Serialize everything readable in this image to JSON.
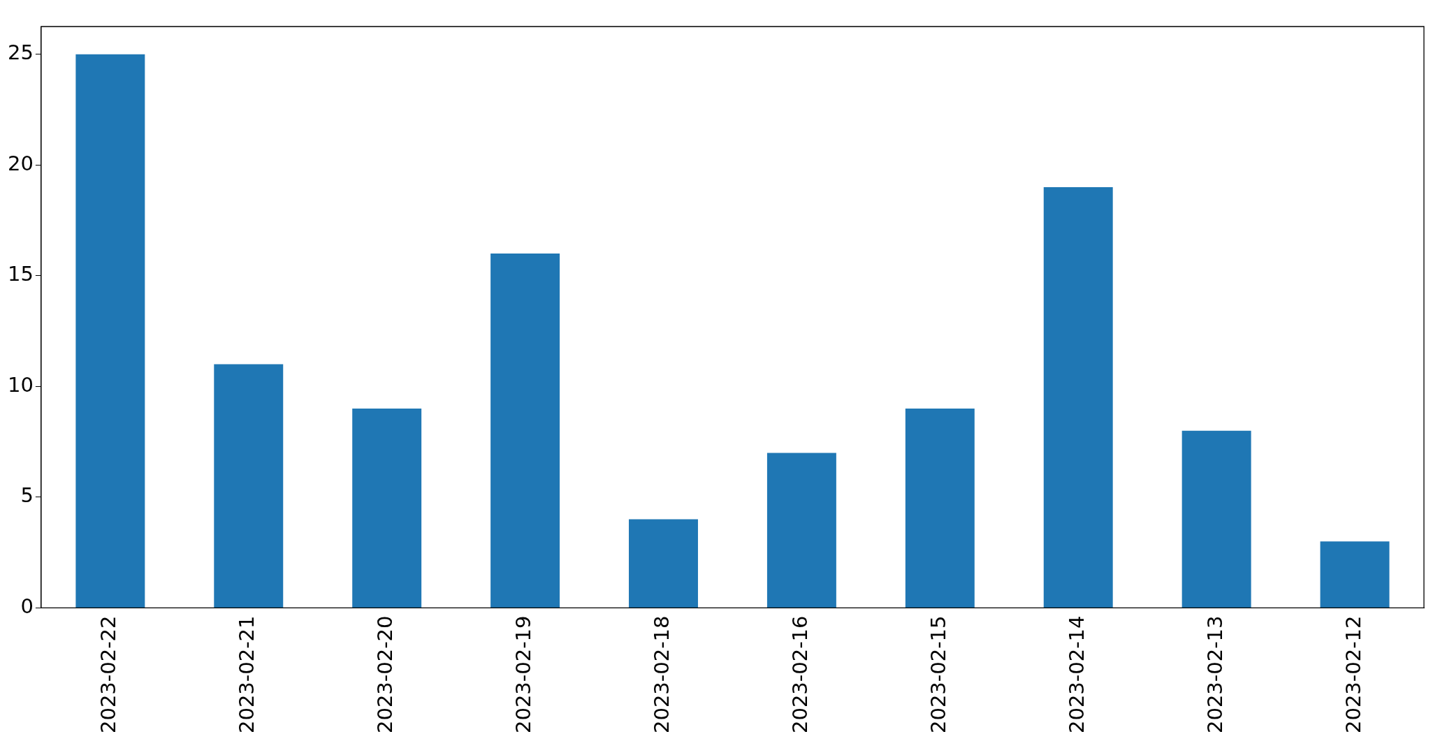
{
  "chart_data": {
    "type": "bar",
    "categories": [
      "2023-02-22",
      "2023-02-21",
      "2023-02-20",
      "2023-02-19",
      "2023-02-18",
      "2023-02-16",
      "2023-02-15",
      "2023-02-14",
      "2023-02-13",
      "2023-02-12"
    ],
    "values": [
      25,
      11,
      9,
      16,
      4,
      7,
      9,
      19,
      8,
      3
    ],
    "color": "#1f77b4",
    "ylim": [
      0,
      26.25
    ],
    "yticks": [
      0,
      5,
      10,
      15,
      20,
      25
    ],
    "grid": false
  }
}
